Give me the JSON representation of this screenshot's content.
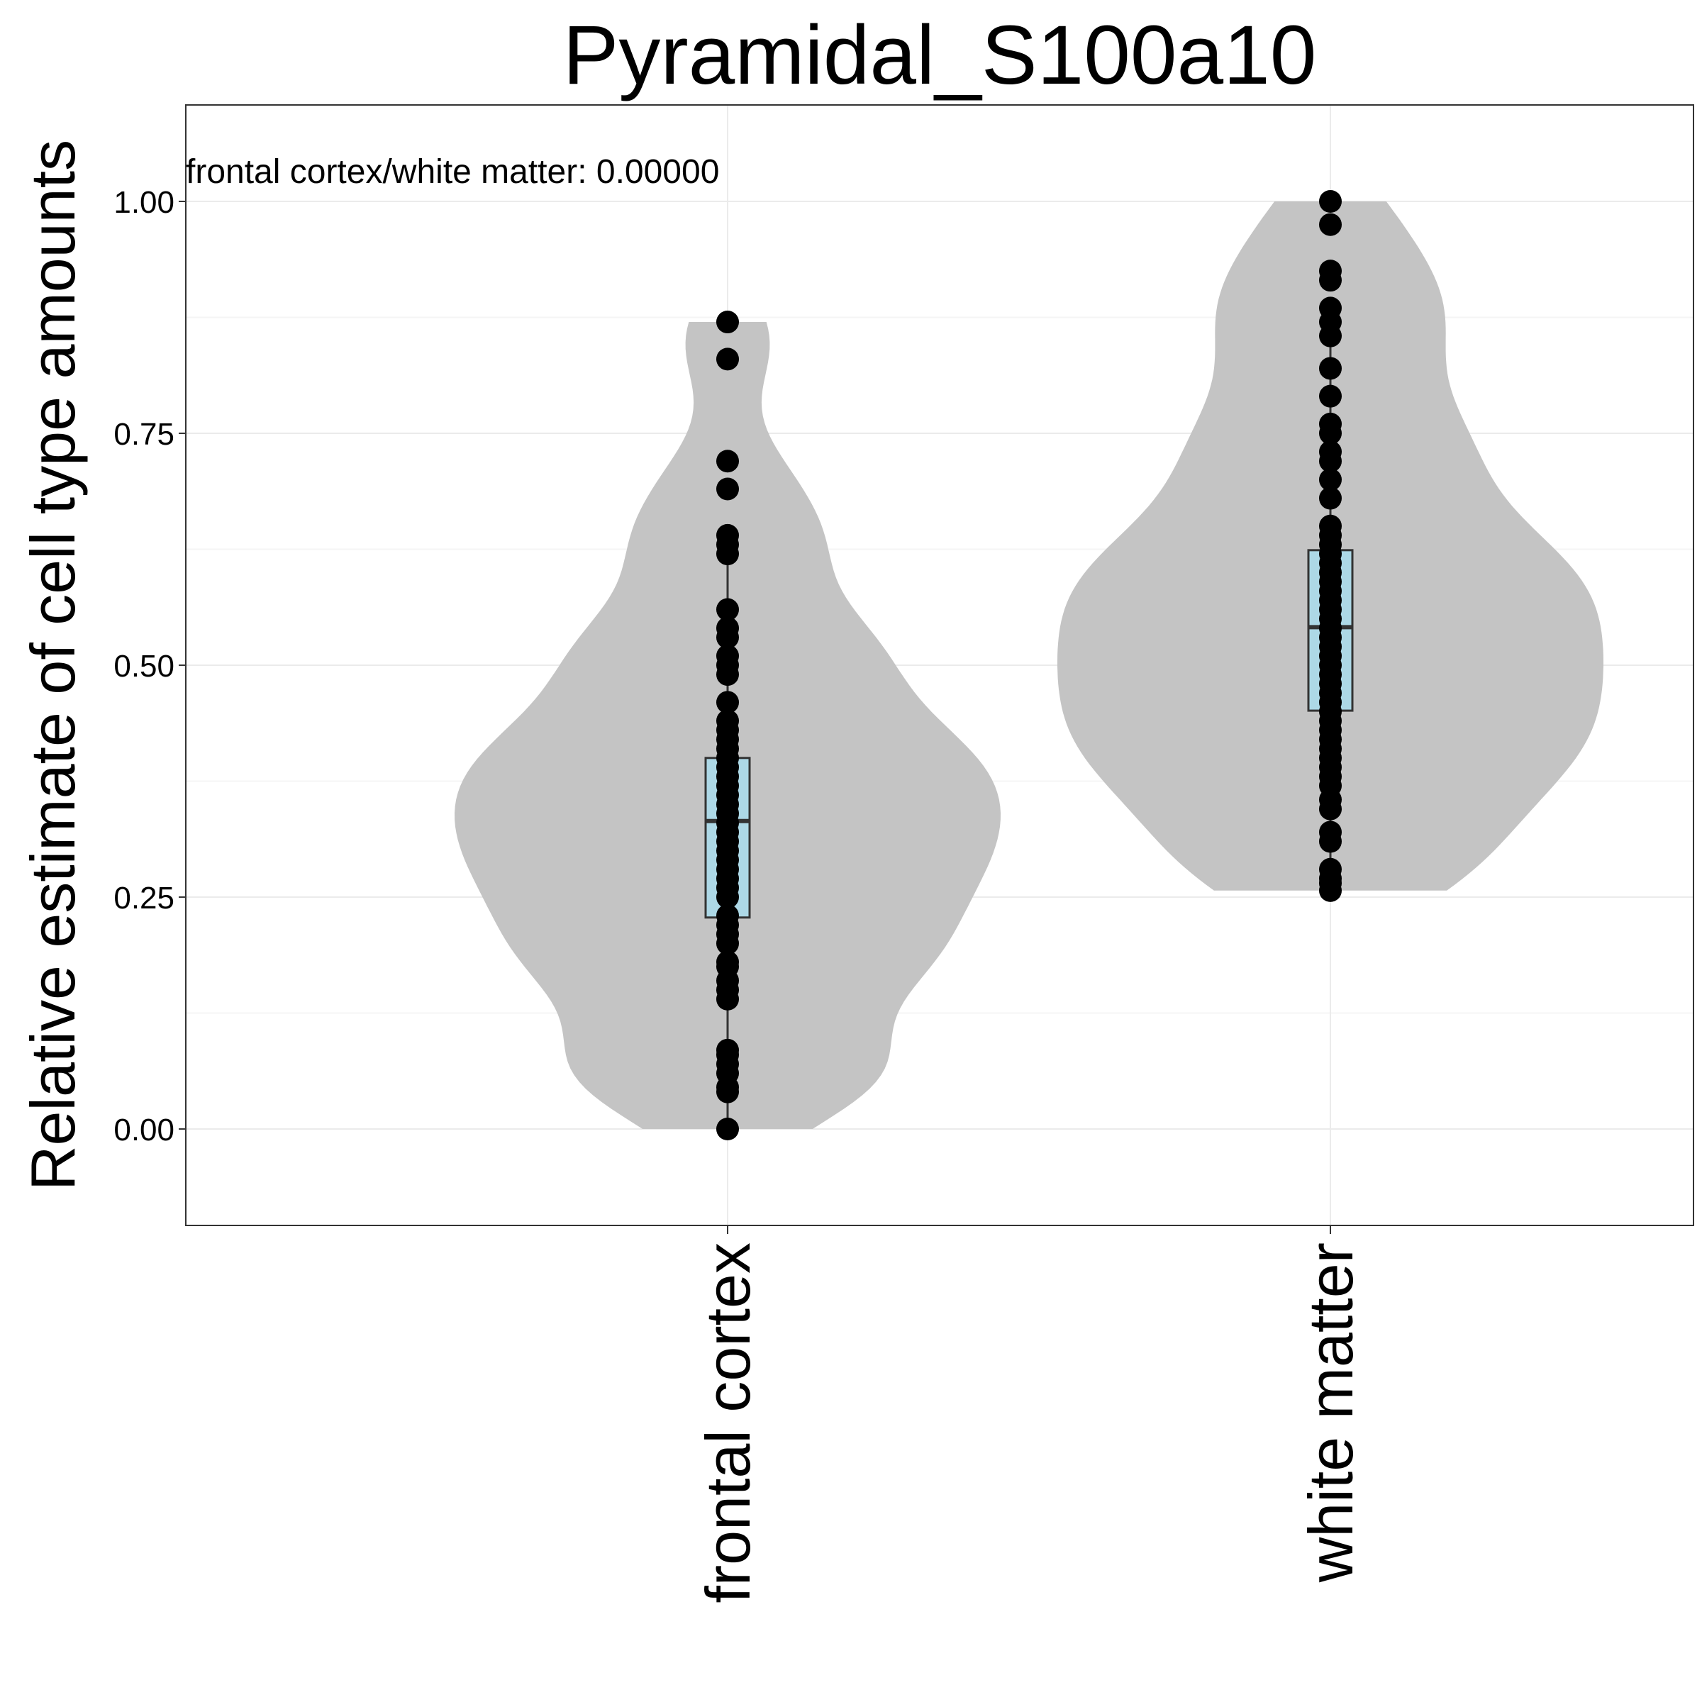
{
  "chart_data": {
    "type": "violin",
    "title": "Pyramidal_S100a10",
    "xlabel": "",
    "ylabel": "Relative estimate of cell type amounts",
    "ylim": [
      -0.105,
      1.105
    ],
    "yticks": [
      0.0,
      0.25,
      0.5,
      0.75,
      1.0
    ],
    "ytick_labels": [
      "0.00",
      "0.25",
      "0.50",
      "0.75",
      "1.00"
    ],
    "grid": true,
    "annotation": "frontal cortex/white matter: 0.00000",
    "categories": [
      "frontal cortex",
      "white matter"
    ],
    "series": [
      {
        "category": "frontal cortex",
        "violin_range": [
          0.0,
          0.87
        ],
        "box": {
          "lower_whisker": 0.0,
          "q1": 0.228,
          "median": 0.332,
          "q3": 0.4,
          "upper_whisker": 0.625
        },
        "points": [
          0.0,
          0.04,
          0.045,
          0.06,
          0.07,
          0.08,
          0.085,
          0.14,
          0.15,
          0.16,
          0.175,
          0.18,
          0.2,
          0.21,
          0.22,
          0.23,
          0.25,
          0.26,
          0.27,
          0.28,
          0.29,
          0.3,
          0.31,
          0.32,
          0.33,
          0.34,
          0.35,
          0.36,
          0.37,
          0.38,
          0.39,
          0.4,
          0.41,
          0.42,
          0.43,
          0.44,
          0.46,
          0.49,
          0.5,
          0.51,
          0.53,
          0.54,
          0.56,
          0.62,
          0.63,
          0.64,
          0.69,
          0.72,
          0.83,
          0.87
        ]
      },
      {
        "category": "white matter",
        "violin_range": [
          0.257,
          1.0
        ],
        "box": {
          "lower_whisker": 0.257,
          "q1": 0.451,
          "median": 0.541,
          "q3": 0.624,
          "upper_whisker": 0.88
        },
        "points": [
          0.257,
          0.265,
          0.27,
          0.28,
          0.31,
          0.32,
          0.345,
          0.355,
          0.37,
          0.38,
          0.39,
          0.4,
          0.41,
          0.42,
          0.43,
          0.44,
          0.45,
          0.46,
          0.47,
          0.48,
          0.49,
          0.5,
          0.51,
          0.52,
          0.53,
          0.54,
          0.55,
          0.56,
          0.57,
          0.58,
          0.59,
          0.6,
          0.61,
          0.62,
          0.63,
          0.64,
          0.65,
          0.68,
          0.7,
          0.72,
          0.73,
          0.75,
          0.76,
          0.79,
          0.82,
          0.855,
          0.87,
          0.885,
          0.915,
          0.925,
          0.975,
          1.0
        ]
      }
    ]
  },
  "colors": {
    "violin_fill": "#c4c4c4",
    "box_fill": "#add8e6",
    "box_stroke": "#333333",
    "point": "#000000",
    "grid_major": "#ebebeb",
    "grid_minor": "#f5f5f5",
    "panel_border": "#333333"
  }
}
